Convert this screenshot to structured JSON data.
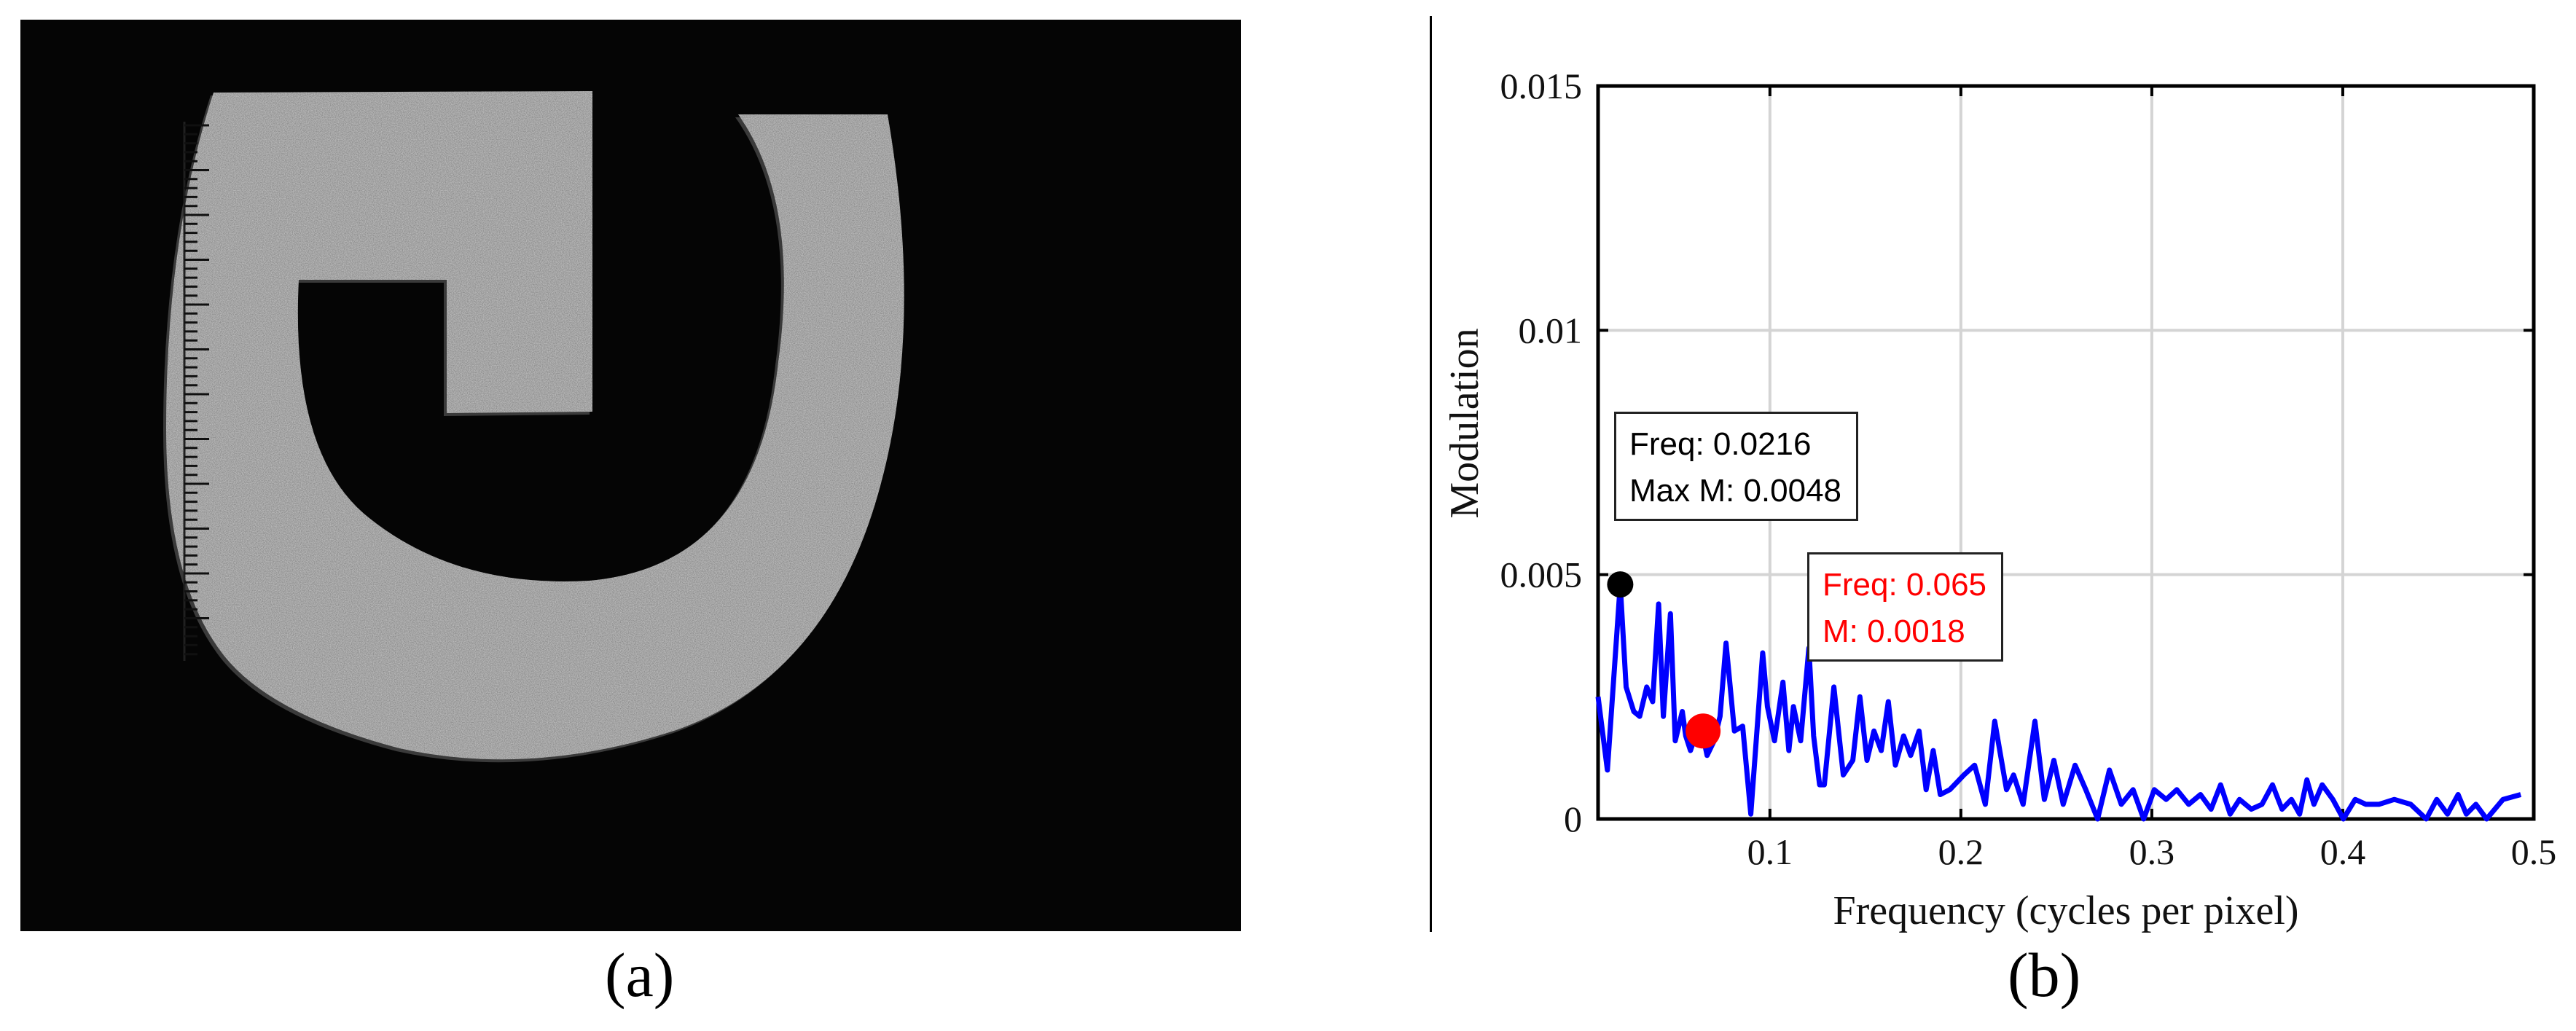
{
  "panel_a": {
    "label": "(a)",
    "description_icon": "speckle-letter-image"
  },
  "panel_b": {
    "label": "(b)"
  },
  "chart_data": {
    "type": "line",
    "xlabel": "Frequency (cycles per pixel)",
    "ylabel": "Modulation",
    "xlim": [
      0.01,
      0.5
    ],
    "ylim": [
      0,
      0.015
    ],
    "xticks": [
      0.1,
      0.2,
      0.3,
      0.4,
      0.5
    ],
    "xtick_labels": [
      "0.1",
      "0.2",
      "0.3",
      "0.4",
      "0.5"
    ],
    "yticks": [
      0,
      0.005,
      0.01,
      0.015
    ],
    "ytick_labels": [
      "0",
      "0.005",
      "0.01",
      "0.015"
    ],
    "grid": true,
    "series": [
      {
        "color": "#0000ff",
        "x": [
          0.01,
          0.0149,
          0.0216,
          0.0247,
          0.0287,
          0.0318,
          0.0355,
          0.0386,
          0.0417,
          0.0442,
          0.0479,
          0.0504,
          0.0541,
          0.0559,
          0.0584,
          0.0609,
          0.0634,
          0.0671,
          0.0708,
          0.0739,
          0.077,
          0.0814,
          0.0857,
          0.09,
          0.0962,
          0.0987,
          0.1024,
          0.1068,
          0.1099,
          0.1123,
          0.1161,
          0.1204,
          0.1229,
          0.126,
          0.1285,
          0.1335,
          0.1384,
          0.1434,
          0.1471,
          0.1508,
          0.1545,
          0.1583,
          0.162,
          0.1657,
          0.17,
          0.1737,
          0.1781,
          0.1818,
          0.1855,
          0.1892,
          0.1942,
          0.2016,
          0.2072,
          0.2128,
          0.2177,
          0.2239,
          0.2276,
          0.2326,
          0.2388,
          0.2437,
          0.2487,
          0.2536,
          0.2598,
          0.2654,
          0.2716,
          0.2778,
          0.284,
          0.2902,
          0.2957,
          0.3013,
          0.3075,
          0.3131,
          0.3193,
          0.3255,
          0.331,
          0.336,
          0.341,
          0.3459,
          0.3521,
          0.3577,
          0.3632,
          0.3682,
          0.3731,
          0.3774,
          0.3812,
          0.3849,
          0.3892,
          0.3948,
          0.4003,
          0.4065,
          0.4121,
          0.4189,
          0.427,
          0.4356,
          0.4437,
          0.4492,
          0.4548,
          0.4604,
          0.4647,
          0.4697,
          0.4753,
          0.4839,
          0.4932
        ],
        "y": [
          0.0025,
          0.001,
          0.0048,
          0.0027,
          0.0022,
          0.0021,
          0.0027,
          0.0024,
          0.0044,
          0.0021,
          0.0042,
          0.0016,
          0.0022,
          0.0017,
          0.0014,
          0.0017,
          0.002,
          0.0013,
          0.0016,
          0.0021,
          0.0036,
          0.0018,
          0.0019,
          0.0001,
          0.0034,
          0.0023,
          0.0016,
          0.0028,
          0.0014,
          0.0023,
          0.0016,
          0.0035,
          0.0017,
          0.0007,
          0.0007,
          0.0027,
          0.0009,
          0.0012,
          0.0025,
          0.0012,
          0.0018,
          0.0014,
          0.0024,
          0.0011,
          0.0017,
          0.0013,
          0.0018,
          0.0006,
          0.0014,
          0.0005,
          0.0006,
          0.0009,
          0.0011,
          0.0003,
          0.002,
          0.0006,
          0.0009,
          0.0003,
          0.002,
          0.0004,
          0.0012,
          0.0003,
          0.0011,
          0.0006,
          0.0,
          0.001,
          0.0003,
          0.0006,
          0.0,
          0.0006,
          0.0004,
          0.0006,
          0.0003,
          0.0005,
          0.0002,
          0.0007,
          0.0001,
          0.0004,
          0.0002,
          0.0003,
          0.0007,
          0.0002,
          0.0004,
          0.0001,
          0.0008,
          0.0003,
          0.0007,
          0.0004,
          0.0,
          0.0004,
          0.0003,
          0.0003,
          0.0004,
          0.0003,
          0.0,
          0.0004,
          0.0001,
          0.0005,
          0.0001,
          0.0003,
          0.0,
          0.0004,
          0.0005
        ]
      }
    ],
    "markers": [
      {
        "x": 0.0216,
        "y": 0.0048,
        "color": "#000000"
      },
      {
        "x": 0.065,
        "y": 0.0018,
        "color": "#ff0000"
      }
    ],
    "annotations": [
      {
        "lines": [
          "Freq: 0.0216",
          "Max M: 0.0048"
        ],
        "color": "#000000"
      },
      {
        "lines": [
          "Freq: 0.065",
          "M: 0.0018"
        ],
        "color": "#ff0000"
      }
    ]
  }
}
